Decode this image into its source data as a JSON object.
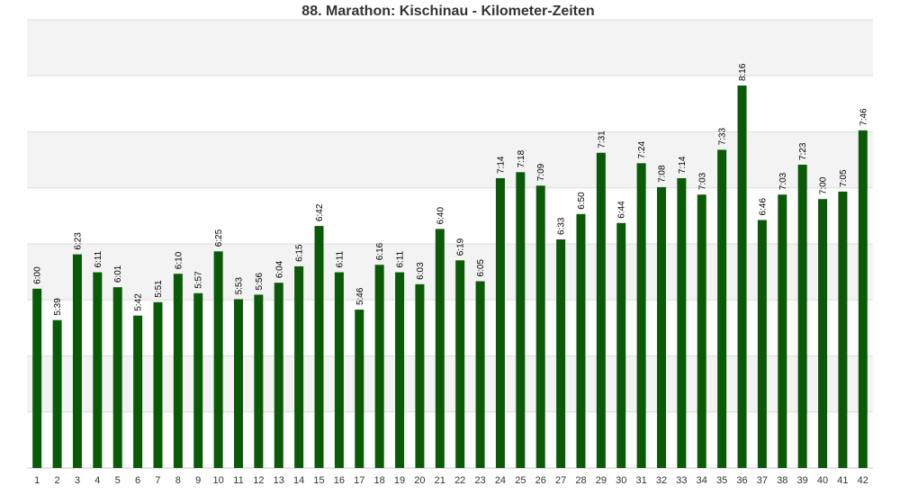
{
  "chart_data": {
    "type": "bar",
    "title": "88. Marathon: Kischinau - Kilometer-Zeiten",
    "xlabel": "",
    "ylabel": "",
    "ylim": [
      240,
      540
    ],
    "grid": true,
    "bar_color": "#0b5a07",
    "band_colors": [
      "#f3f3f3",
      "#ffffff"
    ],
    "categories": [
      "1",
      "2",
      "3",
      "4",
      "5",
      "6",
      "7",
      "8",
      "9",
      "10",
      "11",
      "12",
      "13",
      "14",
      "15",
      "16",
      "17",
      "18",
      "19",
      "20",
      "21",
      "22",
      "23",
      "24",
      "25",
      "26",
      "27",
      "28",
      "29",
      "30",
      "31",
      "32",
      "33",
      "34",
      "35",
      "36",
      "37",
      "38",
      "39",
      "40",
      "41",
      "42"
    ],
    "labels": [
      "6:00",
      "5:39",
      "6:23",
      "6:11",
      "6:01",
      "5:42",
      "5:51",
      "6:10",
      "5:57",
      "6:25",
      "5:53",
      "5:56",
      "6:04",
      "6:15",
      "6:42",
      "6:11",
      "5:46",
      "6:16",
      "6:11",
      "6:03",
      "6:40",
      "6:19",
      "6:05",
      "7:14",
      "7:18",
      "7:09",
      "6:33",
      "6:50",
      "7:31",
      "6:44",
      "7:24",
      "7:08",
      "7:14",
      "7:03",
      "7:33",
      "8:16",
      "6:46",
      "7:03",
      "7:23",
      "7:00",
      "7:05",
      "7:46"
    ],
    "values": [
      360,
      339,
      383,
      371,
      361,
      342,
      351,
      370,
      357,
      385,
      353,
      356,
      364,
      375,
      402,
      371,
      346,
      376,
      371,
      363,
      400,
      379,
      365,
      434,
      438,
      429,
      393,
      410,
      451,
      404,
      444,
      428,
      434,
      423,
      453,
      496,
      406,
      423,
      443,
      420,
      425,
      466
    ]
  }
}
